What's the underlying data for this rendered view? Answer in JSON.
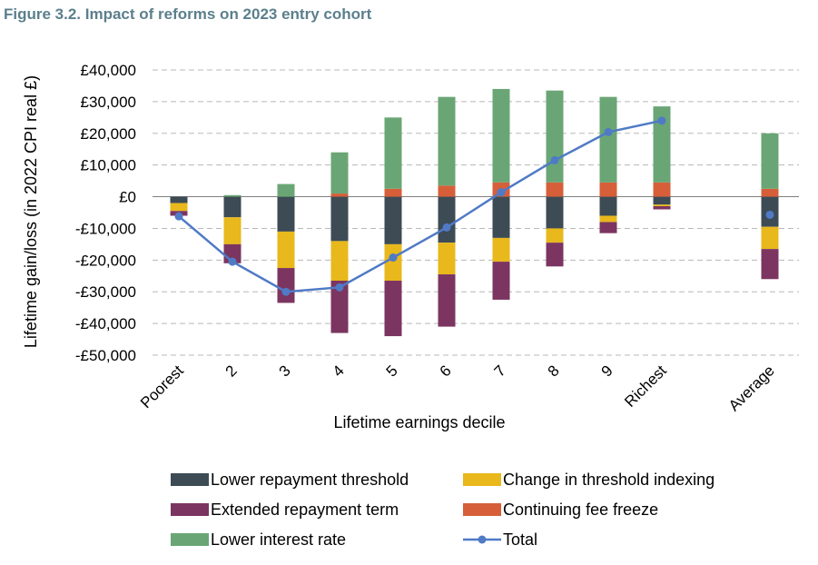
{
  "title": "Figure 3.2. Impact of reforms on 2023 entry cohort",
  "chart_data": {
    "type": "bar",
    "stacked": true,
    "xlabel": "Lifetime earnings decile",
    "ylabel": "Lifetime gain/loss (in 2022 CPI real £)",
    "ylim": [
      -50000,
      40000
    ],
    "yticks": [
      40000,
      30000,
      20000,
      10000,
      0,
      -10000,
      -20000,
      -30000,
      -40000,
      -50000
    ],
    "ytick_labels": [
      "£40,000",
      "£30,000",
      "£20,000",
      "£10,000",
      "£0",
      "-£10,000",
      "-£20,000",
      "-£30,000",
      "-£40,000",
      "-£50,000"
    ],
    "grid": true,
    "legend_position": "bottom",
    "categories": [
      "Poorest",
      "2",
      "3",
      "4",
      "5",
      "6",
      "7",
      "8",
      "9",
      "Richest",
      "Average"
    ],
    "series": [
      {
        "name": "Lower repayment threshold",
        "color": "#3d4b55",
        "values": [
          -2000,
          -6500,
          -11000,
          -14000,
          -15000,
          -14500,
          -13000,
          -10000,
          -6000,
          -2500,
          -9500
        ]
      },
      {
        "name": "Change in threshold indexing",
        "color": "#e8b81c",
        "values": [
          -2500,
          -8500,
          -11500,
          -12500,
          -11500,
          -10000,
          -7500,
          -4500,
          -2000,
          -500,
          -7000
        ]
      },
      {
        "name": "Extended repayment term",
        "color": "#7b3560",
        "values": [
          -1500,
          -6000,
          -11000,
          -16500,
          -17500,
          -16500,
          -12000,
          -7500,
          -3500,
          -1000,
          -9500
        ]
      },
      {
        "name": "Continuing fee freeze",
        "color": "#d65f3a",
        "values": [
          0,
          0,
          0,
          1000,
          2500,
          3500,
          4500,
          4500,
          4500,
          4500,
          2500
        ]
      },
      {
        "name": "Lower interest rate",
        "color": "#6aa675",
        "values": [
          0,
          500,
          4000,
          13000,
          22500,
          28000,
          29500,
          29000,
          27000,
          24000,
          17500
        ]
      }
    ],
    "total": {
      "name": "Total",
      "color": "#4f7ac6",
      "values": [
        -6200,
        -20500,
        -30000,
        -28600,
        -19200,
        -9700,
        1400,
        11500,
        20400,
        24000,
        -5700
      ]
    }
  }
}
